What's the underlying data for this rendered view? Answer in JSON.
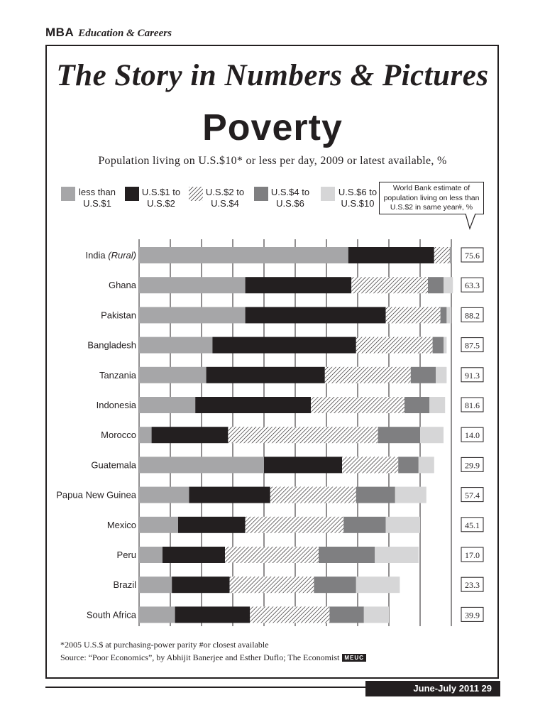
{
  "header": {
    "brand": "MBA",
    "section": "Education & Careers"
  },
  "title": "The Story in Numbers & Pictures",
  "topic": "Poverty",
  "footer": {
    "note": "*2005 U.S.$ at purchasing-power parity      #or closest available",
    "source": "Source: “Poor Economics”, by Abhijit Banerjee and Esther Duflo; The Economist",
    "badge": "MEUC",
    "issue": "June-July 2011   29"
  },
  "colors": {
    "less_than_1": "#a6a6a8",
    "one_to_two": "#231f20",
    "two_to_four": "hatched",
    "four_to_six": "#7f7f81",
    "six_to_ten": "#d6d6d7"
  },
  "chart_data": {
    "type": "bar",
    "orientation": "horizontal",
    "stacked": true,
    "title": "Poverty",
    "subtitle": "Population living on U.S.$10* or less per day, 2009 or latest available, %",
    "xlim": [
      0,
      100
    ],
    "grid": true,
    "legend_placement": "top",
    "categories": [
      "India",
      "Ghana",
      "Pakistan",
      "Bangladesh",
      "Tanzania",
      "Indonesia",
      "Morocco",
      "Guatemala",
      "Papua New Guinea",
      "Mexico",
      "Peru",
      "Brazil",
      "South Africa"
    ],
    "category_notes": [
      "(Rural)",
      "",
      "",
      "",
      "",
      "",
      "",
      "",
      "",
      "",
      "",
      "",
      ""
    ],
    "series": [
      {
        "name": "less than U.S.$1",
        "line1": "less than",
        "line2": "U.S.$1",
        "pattern": "solid",
        "values": [
          67,
          34,
          34,
          23.5,
          21.5,
          18,
          4,
          40,
          16,
          12.5,
          7.5,
          10.5,
          11.5
        ]
      },
      {
        "name": "U.S.$1 to U.S.$2",
        "line1": "U.S.$1 to",
        "line2": "U.S.$2",
        "pattern": "solid",
        "values": [
          27.5,
          34,
          45,
          46,
          38,
          37,
          24.5,
          25,
          26,
          21.5,
          20,
          18.5,
          24
        ]
      },
      {
        "name": "U.S.$2 to U.S.$4",
        "line1": "U.S.$2 to",
        "line2": "U.S.$4",
        "pattern": "hatched",
        "values": [
          5,
          24.5,
          17.5,
          24.5,
          27.5,
          30,
          48,
          18,
          27.5,
          31.5,
          30,
          27,
          25.5
        ]
      },
      {
        "name": "U.S.$4 to U.S.$6",
        "line1": "U.S.$4 to",
        "line2": "U.S.$6",
        "pattern": "solid",
        "values": [
          0.3,
          5,
          2,
          3.5,
          8,
          8,
          13.5,
          6.5,
          12.5,
          13.5,
          18,
          13.5,
          11
        ]
      },
      {
        "name": "U.S.$6 to U.S.$10",
        "line1": "U.S.$6 to",
        "line2": "U.S.$10",
        "pattern": "solid",
        "values": [
          0.2,
          3,
          1.5,
          1,
          3.5,
          5,
          7.5,
          5,
          10,
          11,
          14,
          14,
          8
        ]
      }
    ],
    "side_column": {
      "label": "World Bank estimate of population living on less than U.S.$2 in same year#, %",
      "line1": "World Bank estimate of",
      "line2": "population living on less than",
      "line3": "U.S.$2 in same year#, %",
      "values": [
        "75.6",
        "63.3",
        "88.2",
        "87.5",
        "91.3",
        "81.6",
        "14.0",
        "29.9",
        "57.4",
        "45.1",
        "17.0",
        "23.3",
        "39.9"
      ]
    }
  }
}
